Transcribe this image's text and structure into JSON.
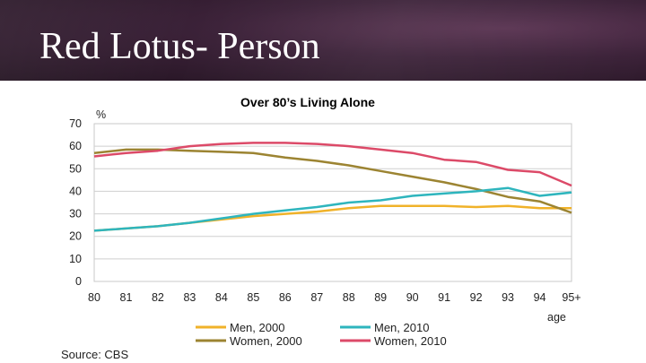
{
  "slide": {
    "title": "Red Lotus- Person"
  },
  "chart_data": {
    "type": "line",
    "title": "Over 80’s Living Alone",
    "ylabel": "%",
    "xlabel": "age",
    "ylim": [
      0,
      70
    ],
    "yticks": [
      0,
      10,
      20,
      30,
      40,
      50,
      60,
      70
    ],
    "grid": true,
    "categories": [
      "80",
      "81",
      "82",
      "83",
      "84",
      "85",
      "86",
      "87",
      "88",
      "89",
      "90",
      "91",
      "92",
      "93",
      "94",
      "95+"
    ],
    "series": [
      {
        "name": "Men, 2000",
        "color": "#f0b229",
        "values": [
          22.5,
          23.5,
          24.5,
          26,
          27.5,
          29,
          30,
          31,
          32.5,
          33.5,
          33.5,
          33.5,
          33,
          33.5,
          32.5,
          32.5
        ]
      },
      {
        "name": "Women, 2000",
        "color": "#9c8432",
        "values": [
          57,
          58.5,
          58.5,
          58,
          57.5,
          57,
          55,
          53.5,
          51.5,
          49,
          46.5,
          44,
          41,
          37.5,
          35.5,
          30.5
        ]
      },
      {
        "name": "Men, 2010",
        "color": "#2eb5bd",
        "values": [
          22.5,
          23.5,
          24.5,
          26,
          28,
          30,
          31.5,
          33,
          35,
          36,
          38,
          39,
          40,
          41.5,
          38,
          39.5
        ]
      },
      {
        "name": "Women, 2010",
        "color": "#dc4a68",
        "values": [
          55.5,
          57,
          58,
          60,
          61,
          61.5,
          61.5,
          61,
          60,
          58.5,
          57,
          54,
          53,
          49.5,
          48.5,
          42.5
        ]
      }
    ],
    "legend_position": "bottom",
    "source": "Source: CBS"
  }
}
